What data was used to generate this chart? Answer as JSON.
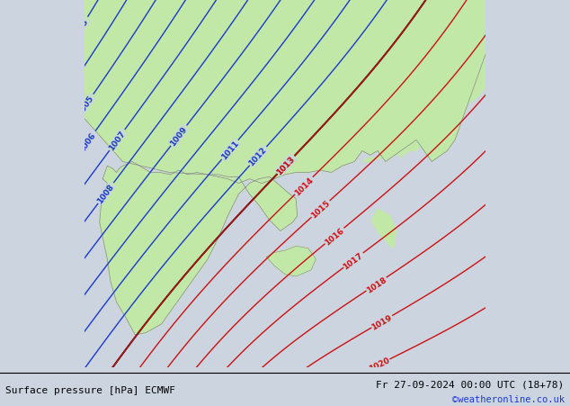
{
  "title_left": "Surface pressure [hPa] ECMWF",
  "title_right": "Fr 27-09-2024 00:00 UTC (18+78)",
  "credit": "©weatheronline.co.uk",
  "bg_color": "#ccd4e0",
  "land_color": "#c2e8a8",
  "border_color": "#888888",
  "blue_isobar_color": "#1a3acc",
  "red_isobar_color": "#cc1111",
  "black_isobar_color": "#000000",
  "label_fontsize": 6.5,
  "footer_fontsize": 8.0,
  "credit_color": "#1a3acc",
  "lon_min": -10.5,
  "lon_max": 15.5,
  "lat_min": 34.5,
  "lat_max": 51.5
}
